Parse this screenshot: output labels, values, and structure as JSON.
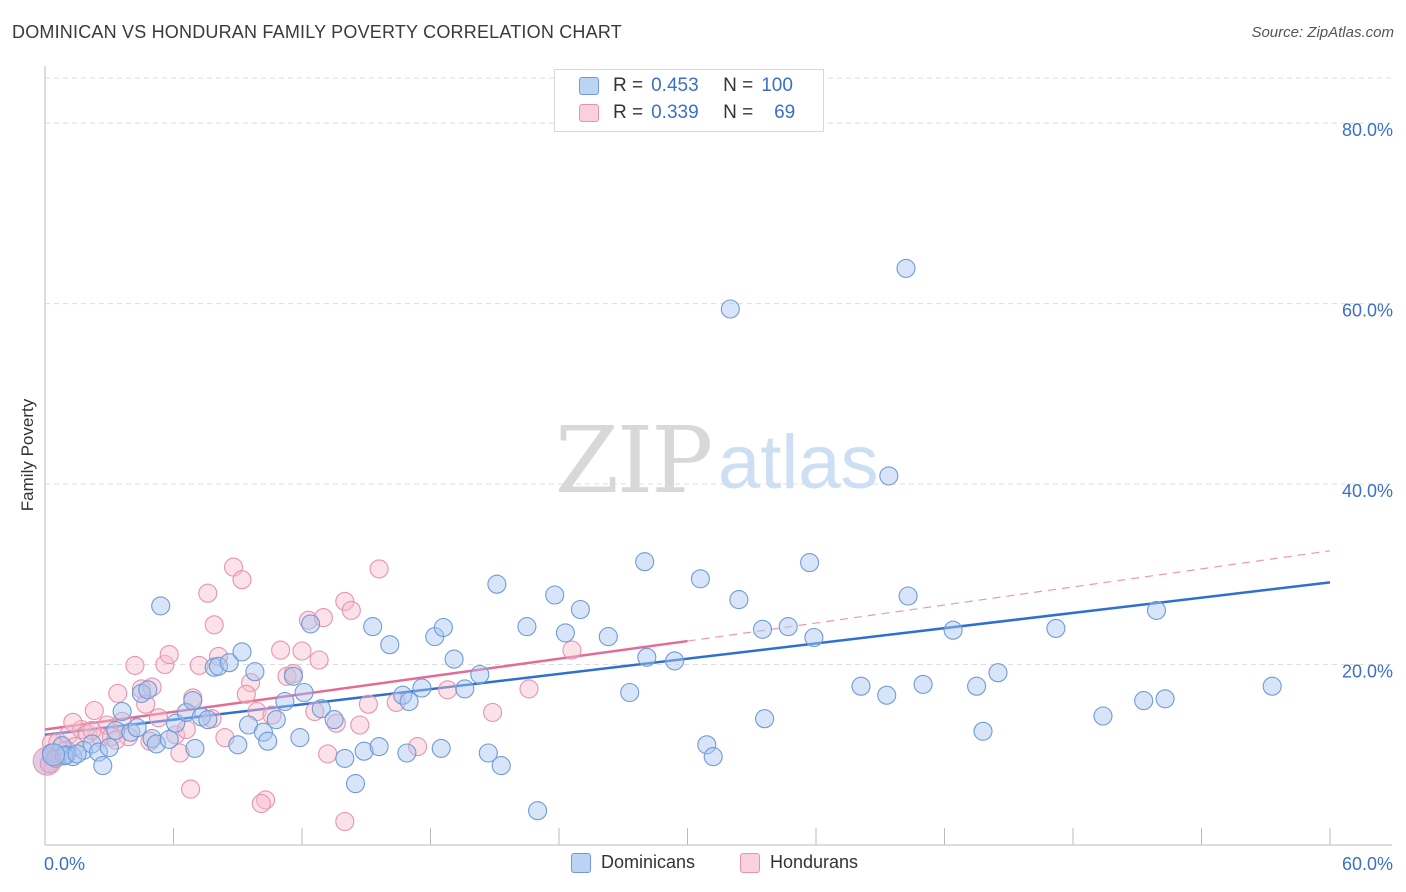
{
  "title": "DOMINICAN VS HONDURAN FAMILY POVERTY CORRELATION CHART",
  "source": "Source: ZipAtlas.com",
  "watermark": {
    "zip": "ZIP",
    "atlas": "atlas"
  },
  "colors": {
    "blue_fill": "#a9c6f0",
    "blue_stroke": "#6f9bd8",
    "blue_line": "#2f6fcf",
    "pink_fill": "#f6bccd",
    "pink_stroke": "#e993ae",
    "pink_line": "#e46b94",
    "axis_label": "#3b6fc9",
    "grid": "#dddddd"
  },
  "legend_top": {
    "rows": [
      {
        "series": "Dominicans",
        "r_label": "R =",
        "r_value": "0.453",
        "n_label": "N =",
        "n_value": "100"
      },
      {
        "series": "Hondurans",
        "r_label": "R =",
        "r_value": "0.339",
        "n_label": "N =",
        "n_value": "69"
      }
    ]
  },
  "bottom_legend": [
    "Dominicans",
    "Hondurans"
  ],
  "chart_data": {
    "type": "scatter",
    "title": "DOMINICAN VS HONDURAN FAMILY POVERTY CORRELATION CHART",
    "xlabel": "",
    "ylabel": "Family Poverty",
    "xlim": [
      0,
      60
    ],
    "ylim": [
      0,
      85
    ],
    "x_tick_labels": [
      {
        "value": 0,
        "label": "0.0%"
      },
      {
        "value": 60,
        "label": "60.0%"
      }
    ],
    "y_tick_labels": [
      {
        "value": 20,
        "label": "20.0%"
      },
      {
        "value": 40,
        "label": "40.0%"
      },
      {
        "value": 60,
        "label": "60.0%"
      },
      {
        "value": 80,
        "label": "80.0%"
      }
    ],
    "series": [
      {
        "name": "Dominicans",
        "R": 0.453,
        "N": 100,
        "trend": {
          "x0": 0,
          "y0": 12.2,
          "x1": 60,
          "y1": 29.1,
          "dashed_to": null
        },
        "points": [
          [
            0.3,
            10.2
          ],
          [
            0.5,
            9.6
          ],
          [
            0.8,
            11.0
          ],
          [
            1.0,
            10.0
          ],
          [
            1.3,
            9.8
          ],
          [
            1.8,
            10.5
          ],
          [
            2.2,
            11.2
          ],
          [
            2.5,
            10.3
          ],
          [
            2.7,
            8.8
          ],
          [
            3.0,
            10.8
          ],
          [
            3.3,
            12.7
          ],
          [
            3.6,
            14.8
          ],
          [
            4.0,
            12.5
          ],
          [
            4.3,
            13.0
          ],
          [
            4.5,
            16.8
          ],
          [
            5.0,
            11.8
          ],
          [
            5.2,
            11.2
          ],
          [
            5.8,
            11.7
          ],
          [
            6.1,
            13.5
          ],
          [
            6.6,
            14.7
          ],
          [
            7.0,
            10.7
          ],
          [
            7.3,
            14.2
          ],
          [
            7.6,
            13.9
          ],
          [
            7.9,
            19.7
          ],
          [
            8.1,
            19.8
          ],
          [
            8.6,
            20.2
          ],
          [
            9.2,
            21.4
          ],
          [
            9.5,
            13.3
          ],
          [
            9.8,
            19.2
          ],
          [
            10.2,
            12.5
          ],
          [
            10.4,
            11.5
          ],
          [
            10.8,
            13.9
          ],
          [
            11.2,
            15.9
          ],
          [
            11.6,
            18.7
          ],
          [
            12.1,
            16.9
          ],
          [
            12.4,
            24.5
          ],
          [
            12.9,
            15.1
          ],
          [
            13.5,
            13.9
          ],
          [
            14.0,
            9.6
          ],
          [
            14.5,
            6.8
          ],
          [
            14.9,
            10.4
          ],
          [
            15.3,
            24.2
          ],
          [
            15.6,
            10.9
          ],
          [
            16.1,
            22.2
          ],
          [
            16.7,
            16.6
          ],
          [
            17.0,
            15.9
          ],
          [
            17.6,
            17.4
          ],
          [
            18.2,
            23.1
          ],
          [
            18.6,
            24.1
          ],
          [
            19.1,
            20.6
          ],
          [
            19.6,
            17.3
          ],
          [
            20.3,
            18.9
          ],
          [
            20.7,
            10.2
          ],
          [
            21.1,
            28.9
          ],
          [
            21.3,
            8.8
          ],
          [
            22.5,
            24.2
          ],
          [
            23.0,
            3.8
          ],
          [
            23.8,
            27.7
          ],
          [
            24.3,
            23.5
          ],
          [
            25.0,
            26.1
          ],
          [
            26.3,
            23.1
          ],
          [
            27.3,
            16.9
          ],
          [
            28.0,
            31.4
          ],
          [
            28.1,
            20.8
          ],
          [
            29.4,
            20.4
          ],
          [
            30.6,
            29.5
          ],
          [
            30.9,
            11.1
          ],
          [
            31.2,
            9.8
          ],
          [
            32.0,
            59.4
          ],
          [
            32.4,
            27.2
          ],
          [
            33.5,
            23.9
          ],
          [
            33.6,
            14.0
          ],
          [
            34.7,
            24.2
          ],
          [
            35.7,
            31.3
          ],
          [
            35.9,
            23.0
          ],
          [
            38.1,
            17.6
          ],
          [
            39.3,
            16.6
          ],
          [
            39.4,
            40.9
          ],
          [
            40.2,
            63.9
          ],
          [
            40.3,
            27.6
          ],
          [
            41.0,
            17.8
          ],
          [
            42.4,
            23.8
          ],
          [
            43.5,
            17.6
          ],
          [
            43.8,
            12.6
          ],
          [
            44.5,
            19.1
          ],
          [
            47.2,
            24.0
          ],
          [
            49.4,
            14.3
          ],
          [
            51.3,
            16.0
          ],
          [
            51.9,
            26.0
          ],
          [
            52.3,
            16.2
          ],
          [
            57.3,
            17.6
          ],
          [
            5.4,
            26.5
          ],
          [
            0.9,
            9.9
          ],
          [
            1.5,
            10.1
          ],
          [
            4.8,
            17.2
          ],
          [
            6.9,
            16.0
          ],
          [
            9.0,
            11.1
          ],
          [
            11.9,
            11.9
          ],
          [
            16.9,
            10.2
          ],
          [
            18.5,
            10.7
          ]
        ]
      },
      {
        "name": "Hondurans",
        "R": 0.339,
        "N": 69,
        "trend": {
          "x0": 0,
          "y0": 12.8,
          "x1": 30,
          "y1": 22.6,
          "dashed_to": {
            "x": 60,
            "y": 32.6
          }
        },
        "points": [
          [
            0.3,
            11.3
          ],
          [
            0.6,
            11.4
          ],
          [
            0.9,
            9.9
          ],
          [
            1.1,
            12.2
          ],
          [
            1.4,
            10.9
          ],
          [
            1.7,
            12.8
          ],
          [
            2.0,
            12.3
          ],
          [
            2.3,
            14.9
          ],
          [
            2.6,
            11.9
          ],
          [
            2.9,
            13.3
          ],
          [
            3.1,
            12.0
          ],
          [
            3.4,
            16.8
          ],
          [
            3.6,
            13.7
          ],
          [
            3.9,
            12.0
          ],
          [
            4.2,
            19.9
          ],
          [
            4.5,
            17.3
          ],
          [
            4.7,
            15.6
          ],
          [
            5.0,
            17.5
          ],
          [
            5.3,
            14.1
          ],
          [
            5.6,
            20.0
          ],
          [
            5.8,
            21.1
          ],
          [
            6.1,
            12.2
          ],
          [
            6.3,
            10.2
          ],
          [
            6.6,
            12.8
          ],
          [
            6.9,
            16.3
          ],
          [
            7.2,
            19.9
          ],
          [
            7.6,
            27.9
          ],
          [
            7.9,
            24.4
          ],
          [
            8.1,
            20.9
          ],
          [
            8.4,
            11.9
          ],
          [
            8.8,
            30.8
          ],
          [
            9.2,
            29.4
          ],
          [
            9.6,
            18.0
          ],
          [
            9.9,
            14.8
          ],
          [
            10.3,
            5.0
          ],
          [
            10.6,
            14.4
          ],
          [
            11.0,
            21.6
          ],
          [
            11.3,
            18.7
          ],
          [
            11.6,
            19.0
          ],
          [
            12.0,
            21.5
          ],
          [
            12.3,
            24.9
          ],
          [
            12.6,
            14.8
          ],
          [
            13.0,
            25.2
          ],
          [
            13.2,
            10.1
          ],
          [
            13.6,
            13.5
          ],
          [
            14.0,
            27.0
          ],
          [
            14.3,
            26.0
          ],
          [
            14.7,
            13.3
          ],
          [
            15.1,
            15.6
          ],
          [
            15.6,
            30.6
          ],
          [
            16.4,
            15.8
          ],
          [
            17.4,
            10.9
          ],
          [
            18.8,
            17.2
          ],
          [
            20.9,
            14.7
          ],
          [
            22.6,
            17.3
          ],
          [
            24.6,
            21.6
          ],
          [
            6.8,
            6.2
          ],
          [
            10.1,
            4.6
          ],
          [
            14.0,
            2.6
          ],
          [
            0.2,
            9.0
          ],
          [
            1.3,
            13.6
          ],
          [
            2.2,
            12.7
          ],
          [
            3.3,
            11.6
          ],
          [
            4.9,
            11.5
          ],
          [
            7.8,
            14.0
          ],
          [
            9.4,
            16.7
          ],
          [
            12.8,
            20.5
          ],
          [
            1.0,
            10.5
          ],
          [
            0.5,
            10.0
          ]
        ]
      }
    ]
  }
}
